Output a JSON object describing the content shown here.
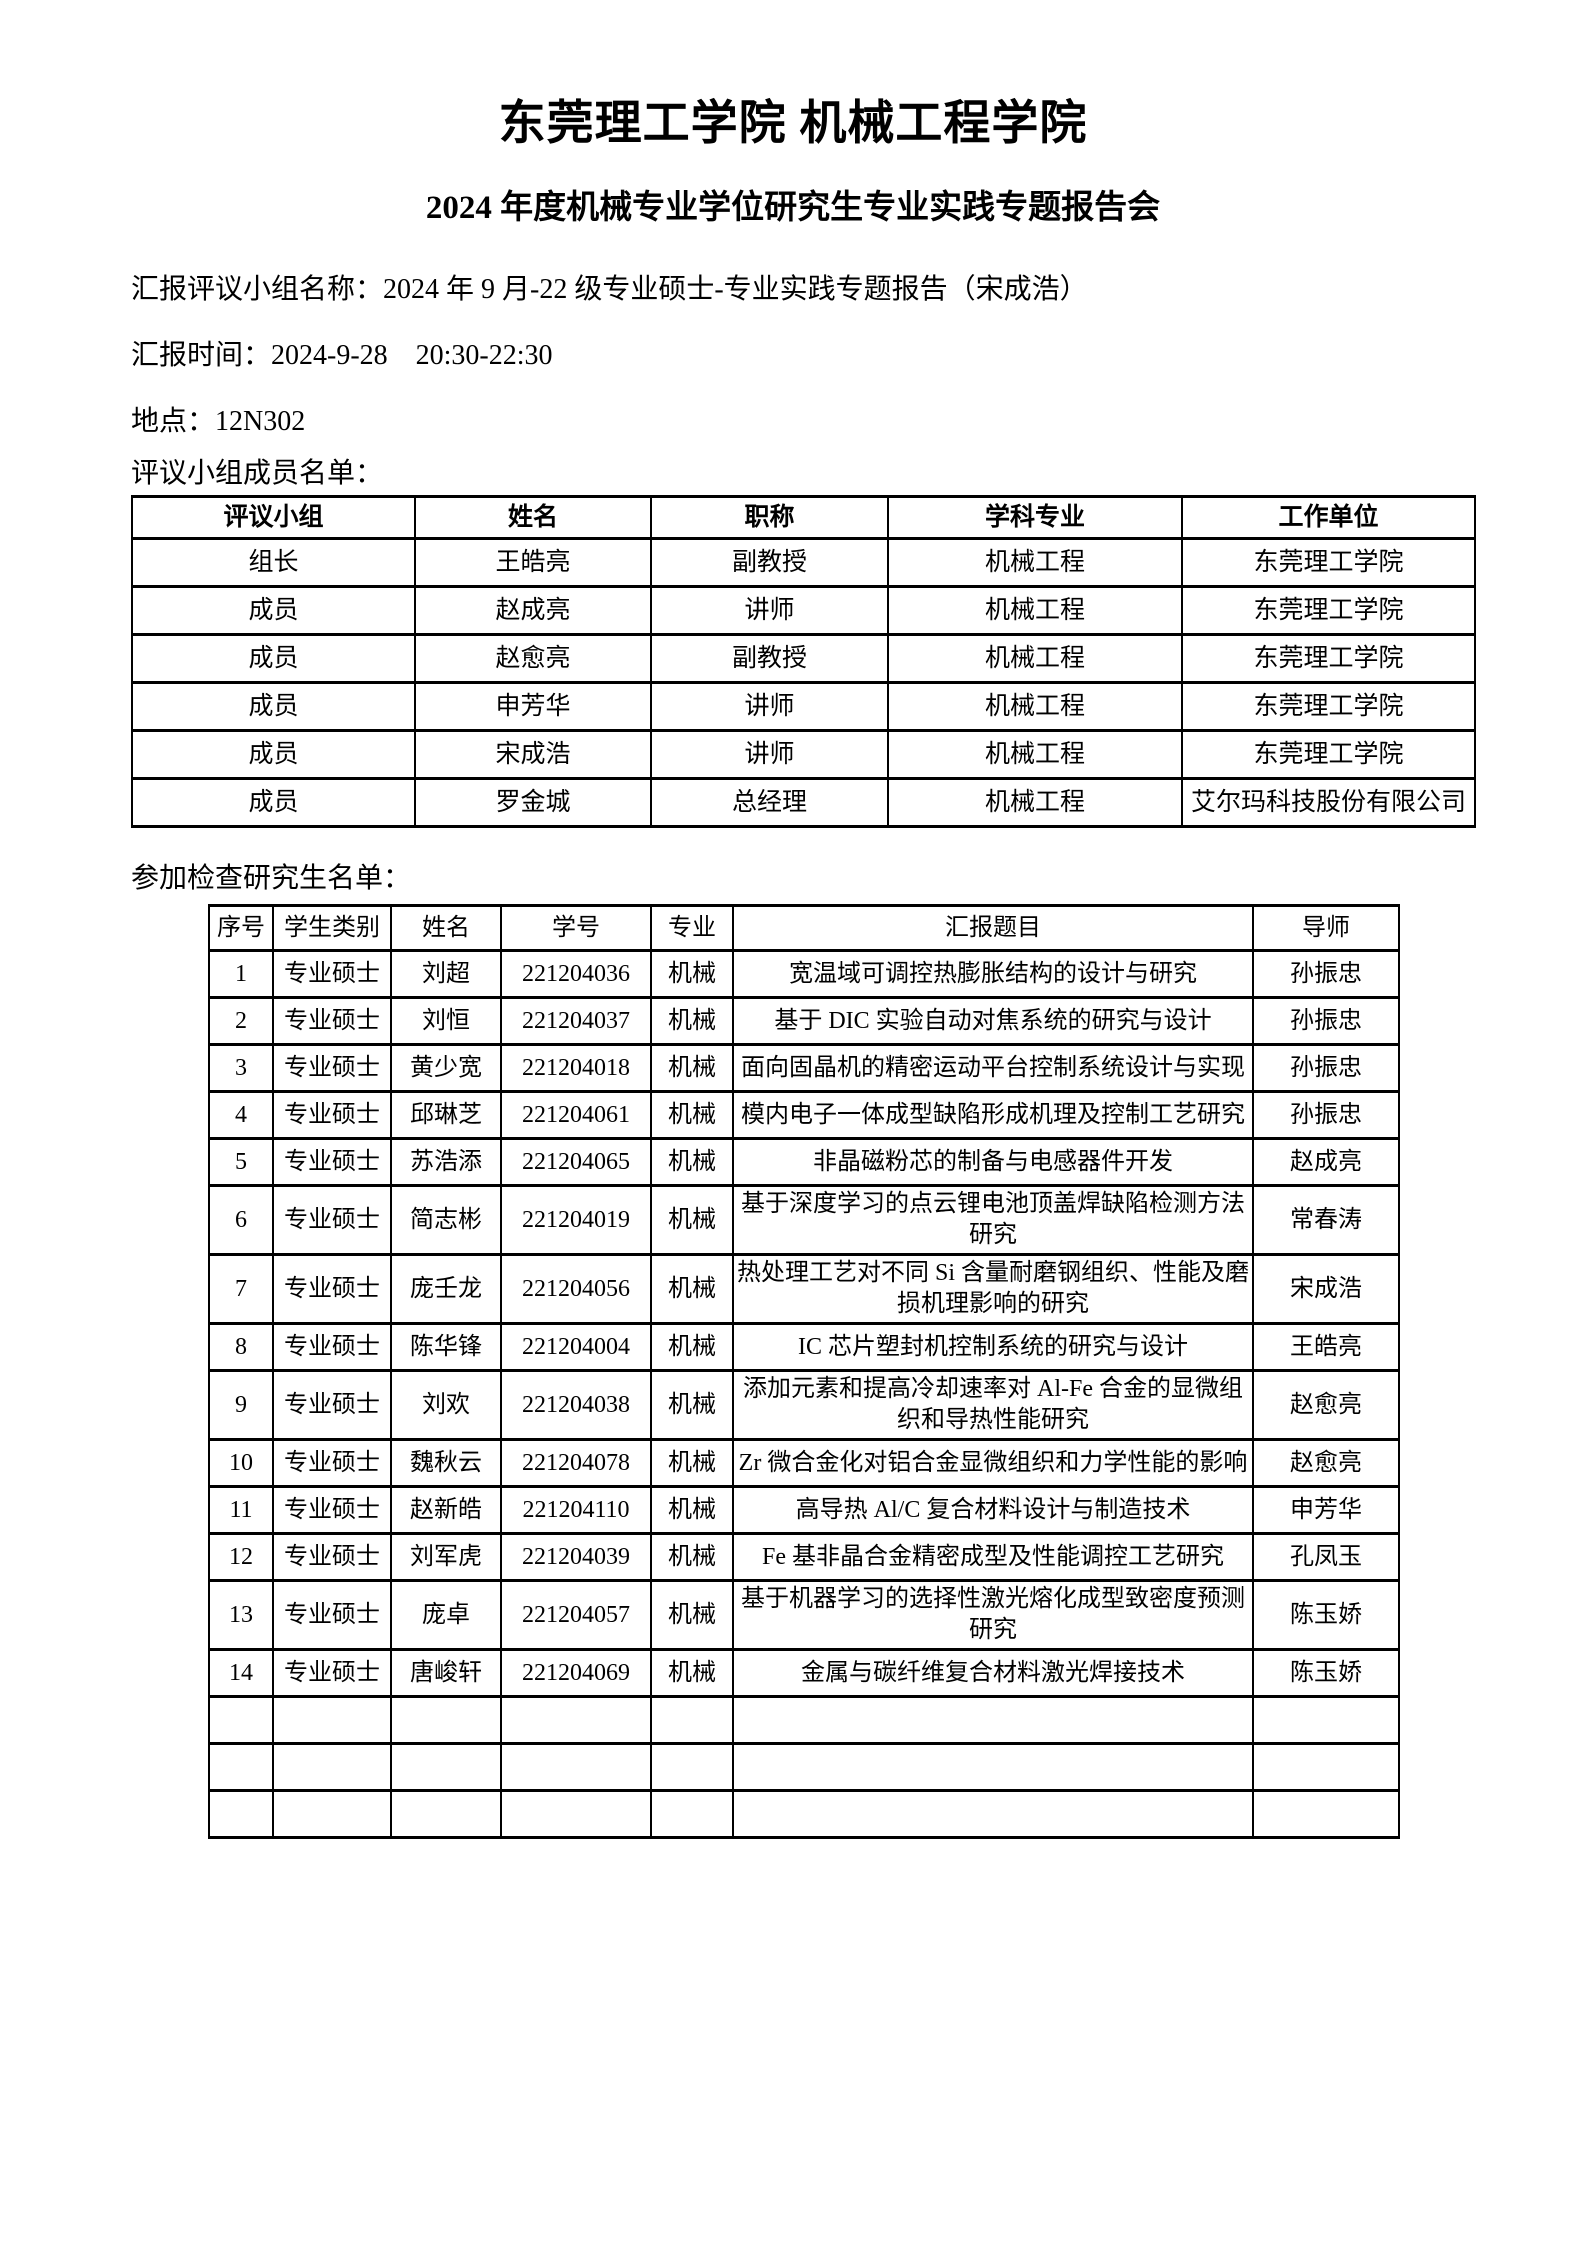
{
  "colors": {
    "text": "#000000",
    "background": "#ffffff",
    "table_border": "#000000"
  },
  "page": {
    "title": "东莞理工学院 机械工程学院",
    "subtitle": "2024 年度机械专业学位研究生专业实践专题报告会",
    "info_lines": {
      "group_name": "汇报评议小组名称：2024 年 9 月-22 级专业硕士-专业实践专题报告（宋成浩）",
      "report_time": "汇报时间：2024-9-28　20:30-22:30",
      "location": "地点：12N302"
    }
  },
  "committee_section": {
    "label": "评议小组成员名单：",
    "table": {
      "headers": [
        "评议小组",
        "姓名",
        "职称",
        "学科专业",
        "工作单位"
      ],
      "rows": [
        [
          "组长",
          "王皓亮",
          "副教授",
          "机械工程",
          "东莞理工学院"
        ],
        [
          "成员",
          "赵成亮",
          "讲师",
          "机械工程",
          "东莞理工学院"
        ],
        [
          "成员",
          "赵愈亮",
          "副教授",
          "机械工程",
          "东莞理工学院"
        ],
        [
          "成员",
          "申芳华",
          "讲师",
          "机械工程",
          "东莞理工学院"
        ],
        [
          "成员",
          "宋成浩",
          "讲师",
          "机械工程",
          "东莞理工学院"
        ],
        [
          "成员",
          "罗金城",
          "总经理",
          "机械工程",
          "艾尔玛科技股份有限公司"
        ]
      ]
    }
  },
  "students_section": {
    "label": "参加检查研究生名单：",
    "table": {
      "headers": [
        "序号",
        "学生类别",
        "姓名",
        "学号",
        "专业",
        "汇报题目",
        "导师"
      ],
      "rows": [
        [
          "1",
          "专业硕士",
          "刘超",
          "221204036",
          "机械",
          "宽温域可调控热膨胀结构的设计与研究",
          "孙振忠"
        ],
        [
          "2",
          "专业硕士",
          "刘恒",
          "221204037",
          "机械",
          "基于 DIC 实验自动对焦系统的研究与设计",
          "孙振忠"
        ],
        [
          "3",
          "专业硕士",
          "黄少宽",
          "221204018",
          "机械",
          "面向固晶机的精密运动平台控制系统设计与实现",
          "孙振忠"
        ],
        [
          "4",
          "专业硕士",
          "邱琳芝",
          "221204061",
          "机械",
          "模内电子一体成型缺陷形成机理及控制工艺研究",
          "孙振忠"
        ],
        [
          "5",
          "专业硕士",
          "苏浩添",
          "221204065",
          "机械",
          "非晶磁粉芯的制备与电感器件开发",
          "赵成亮"
        ],
        [
          "6",
          "专业硕士",
          "简志彬",
          "221204019",
          "机械",
          "基于深度学习的点云锂电池顶盖焊缺陷检测方法研究",
          "常春涛"
        ],
        [
          "7",
          "专业硕士",
          "庞壬龙",
          "221204056",
          "机械",
          "热处理工艺对不同 Si 含量耐磨钢组织、性能及磨损机理影响的研究",
          "宋成浩"
        ],
        [
          "8",
          "专业硕士",
          "陈华锋",
          "221204004",
          "机械",
          "IC 芯片塑封机控制系统的研究与设计",
          "王皓亮"
        ],
        [
          "9",
          "专业硕士",
          "刘欢",
          "221204038",
          "机械",
          "添加元素和提高冷却速率对 Al-Fe 合金的显微组织和导热性能研究",
          "赵愈亮"
        ],
        [
          "10",
          "专业硕士",
          "魏秋云",
          "221204078",
          "机械",
          "Zr 微合金化对铝合金显微组织和力学性能的影响",
          "赵愈亮"
        ],
        [
          "11",
          "专业硕士",
          "赵新皓",
          "221204110",
          "机械",
          "高导热 Al/C 复合材料设计与制造技术",
          "申芳华"
        ],
        [
          "12",
          "专业硕士",
          "刘军虎",
          "221204039",
          "机械",
          "Fe 基非晶合金精密成型及性能调控工艺研究",
          "孔凤玉"
        ],
        [
          "13",
          "专业硕士",
          "庞卓",
          "221204057",
          "机械",
          "基于机器学习的选择性激光熔化成型致密度预测研究",
          "陈玉娇"
        ],
        [
          "14",
          "专业硕士",
          "唐峻轩",
          "221204069",
          "机械",
          "金属与碳纤维复合材料激光焊接技术",
          "陈玉娇"
        ],
        [
          "",
          "",
          "",
          "",
          "",
          "",
          ""
        ],
        [
          "",
          "",
          "",
          "",
          "",
          "",
          ""
        ],
        [
          "",
          "",
          "",
          "",
          "",
          "",
          ""
        ]
      ]
    }
  }
}
